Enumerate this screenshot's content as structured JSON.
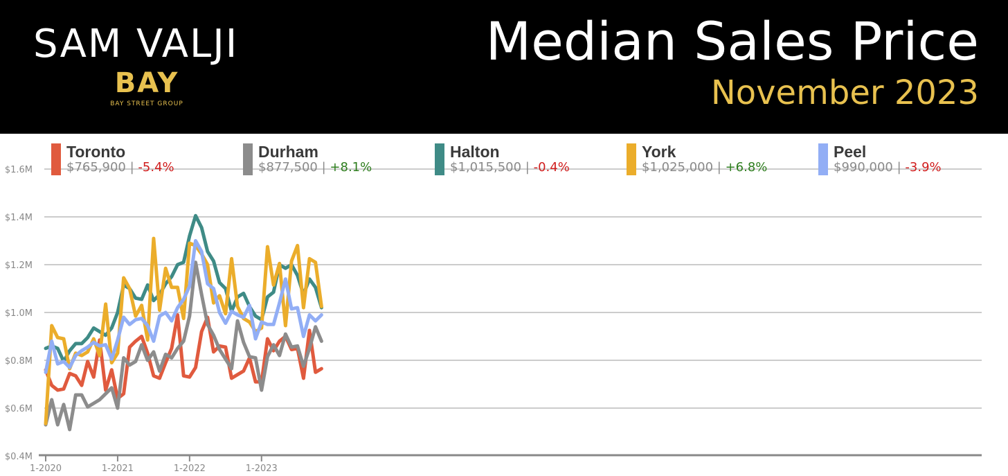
{
  "header": {
    "brand_name": "SAM VALJI",
    "brand_mark": "BAY",
    "brand_sub": "BAY STREET GROUP",
    "title": "Median Sales Price",
    "subtitle": "November 2023"
  },
  "colors": {
    "header_bg": "#000000",
    "gold": "#e8c14f",
    "positive": "#2e7d1e",
    "negative": "#d01d1d",
    "grid": "#cccccc",
    "axis": "#888888"
  },
  "legend": [
    {
      "name": "Toronto",
      "price": "$765,900",
      "change": "-5.4%",
      "color": "#e05a3e",
      "trend": "negative"
    },
    {
      "name": "Durham",
      "price": "$877,500",
      "change": "+8.1%",
      "color": "#8c8c8c",
      "trend": "positive"
    },
    {
      "name": "Halton",
      "price": "$1,015,500",
      "change": "-0.4%",
      "color": "#3f8b86",
      "trend": "negative"
    },
    {
      "name": "York",
      "price": "$1,025,000",
      "change": "+6.8%",
      "color": "#ebad2b",
      "trend": "positive"
    },
    {
      "name": "Peel",
      "price": "$990,000",
      "change": "-3.9%",
      "color": "#92aef5",
      "trend": "negative"
    }
  ],
  "chart_data": {
    "type": "line",
    "title": "Median Sales Price",
    "subtitle": "November 2023",
    "xlabel": "",
    "ylabel": "",
    "x_tick_labels": [
      "1-2020",
      "1-2021",
      "1-2022",
      "1-2023"
    ],
    "y_tick_labels": [
      "$0.4M",
      "$0.6M",
      "$0.8M",
      "$1.0M",
      "$1.2M",
      "$1.4M",
      "$1.6M"
    ],
    "y_ticks": [
      0.4,
      0.6,
      0.8,
      1.0,
      1.2,
      1.4,
      1.6
    ],
    "ylim": [
      0.4,
      1.6
    ],
    "x_range_months": "Jan 2020 – Nov 2023",
    "grid": true,
    "legend_position": "top",
    "units": "millions of dollars",
    "x": [
      "2020-01",
      "2020-02",
      "2020-03",
      "2020-04",
      "2020-05",
      "2020-06",
      "2020-07",
      "2020-08",
      "2020-09",
      "2020-10",
      "2020-11",
      "2020-12",
      "2021-01",
      "2021-02",
      "2021-03",
      "2021-04",
      "2021-05",
      "2021-06",
      "2021-07",
      "2021-08",
      "2021-09",
      "2021-10",
      "2021-11",
      "2021-12",
      "2022-01",
      "2022-02",
      "2022-03",
      "2022-04",
      "2022-05",
      "2022-06",
      "2022-07",
      "2022-08",
      "2022-09",
      "2022-10",
      "2022-11",
      "2022-12",
      "2023-01",
      "2023-02",
      "2023-03",
      "2023-04",
      "2023-05",
      "2023-06",
      "2023-07",
      "2023-08",
      "2023-09",
      "2023-10",
      "2023-11"
    ],
    "series": [
      {
        "name": "Toronto",
        "color": "#e05a3e",
        "values": [
          0.76,
          0.695,
          0.675,
          0.68,
          0.745,
          0.735,
          0.695,
          0.795,
          0.73,
          0.885,
          0.675,
          0.76,
          0.64,
          0.66,
          0.855,
          0.88,
          0.9,
          0.83,
          0.735,
          0.725,
          0.79,
          0.85,
          0.99,
          0.735,
          0.73,
          0.77,
          0.92,
          0.98,
          0.835,
          0.86,
          0.855,
          0.725,
          0.74,
          0.755,
          0.81,
          0.71,
          0.71,
          0.89,
          0.84,
          0.88,
          0.9,
          0.845,
          0.85,
          0.725,
          0.925,
          0.75,
          0.765
        ]
      },
      {
        "name": "Durham",
        "color": "#8c8c8c",
        "values": [
          0.53,
          0.635,
          0.53,
          0.615,
          0.51,
          0.655,
          0.655,
          0.605,
          0.62,
          0.635,
          0.66,
          0.685,
          0.6,
          0.81,
          0.78,
          0.795,
          0.865,
          0.8,
          0.835,
          0.755,
          0.825,
          0.81,
          0.85,
          0.88,
          0.985,
          1.21,
          1.075,
          0.95,
          0.905,
          0.845,
          0.805,
          0.765,
          0.965,
          0.875,
          0.815,
          0.81,
          0.675,
          0.815,
          0.865,
          0.82,
          0.91,
          0.855,
          0.86,
          0.775,
          0.85,
          0.94,
          0.88
        ]
      },
      {
        "name": "Halton",
        "color": "#3f8b86",
        "values": [
          0.85,
          0.86,
          0.85,
          0.795,
          0.84,
          0.87,
          0.87,
          0.895,
          0.935,
          0.92,
          0.905,
          0.935,
          1.0,
          1.115,
          1.1,
          1.06,
          1.055,
          1.115,
          1.05,
          1.075,
          1.12,
          1.15,
          1.2,
          1.21,
          1.32,
          1.405,
          1.355,
          1.255,
          1.215,
          1.125,
          1.1,
          1.005,
          1.065,
          1.08,
          1.025,
          0.985,
          0.97,
          1.065,
          1.085,
          1.2,
          1.185,
          1.2,
          1.155,
          1.075,
          1.14,
          1.105,
          1.02
        ]
      },
      {
        "name": "York",
        "color": "#ebad2b",
        "values": [
          0.535,
          0.945,
          0.895,
          0.89,
          0.765,
          0.83,
          0.82,
          0.835,
          0.89,
          0.82,
          1.035,
          0.79,
          0.83,
          1.145,
          1.1,
          0.985,
          1.03,
          0.885,
          1.31,
          1.01,
          1.185,
          1.105,
          1.105,
          0.975,
          1.29,
          1.28,
          1.245,
          1.2,
          1.04,
          1.07,
          0.995,
          1.225,
          1.025,
          0.975,
          0.96,
          0.92,
          0.935,
          1.275,
          1.115,
          1.205,
          0.945,
          1.215,
          1.28,
          1.02,
          1.225,
          1.21,
          1.025
        ]
      },
      {
        "name": "Peel",
        "color": "#92aef5",
        "values": [
          0.75,
          0.88,
          0.785,
          0.795,
          0.77,
          0.82,
          0.84,
          0.855,
          0.875,
          0.86,
          0.865,
          0.805,
          0.885,
          0.98,
          0.95,
          0.97,
          0.975,
          0.945,
          0.88,
          0.985,
          1.0,
          0.965,
          1.02,
          1.055,
          1.11,
          1.3,
          1.255,
          1.12,
          1.1,
          1.0,
          0.955,
          1.005,
          0.99,
          0.98,
          1.03,
          0.89,
          0.96,
          0.95,
          0.95,
          1.04,
          1.14,
          1.015,
          1.02,
          0.9,
          0.99,
          0.965,
          0.99
        ]
      }
    ]
  }
}
